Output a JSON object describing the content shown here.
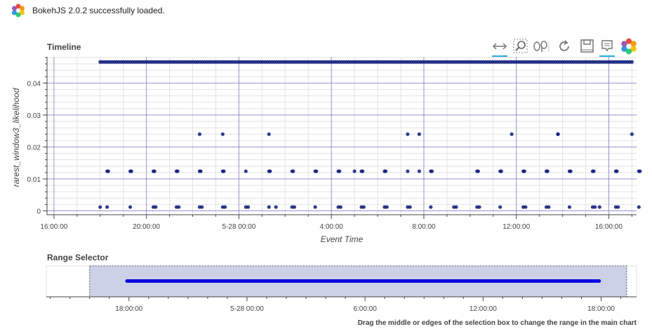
{
  "status": {
    "message": "BokehJS 2.0.2 successfully loaded."
  },
  "timeline": {
    "title": "Timeline"
  },
  "range_selector": {
    "title": "Range Selector"
  },
  "footnote": "Drag the middle or edges of the selection box to change the range in the main chart",
  "toolbar": {
    "tools": [
      {
        "icon": "x-pan-icon",
        "active": true
      },
      {
        "icon": "box-zoom-icon",
        "active": false
      },
      {
        "icon": "wheel-zoom-icon",
        "active": false
      },
      {
        "icon": "reset-icon",
        "active": false
      },
      {
        "icon": "save-icon",
        "active": false
      },
      {
        "icon": "hover-icon",
        "active": true
      },
      {
        "icon": "bokeh-logo-icon",
        "active": false
      }
    ]
  },
  "colors": {
    "points": "#0d1a7a",
    "range_line": "#0a0ade",
    "overlay": "#c8cce6",
    "grid_major": "#7b7bbf",
    "grid_minor": "#e2e2e2"
  },
  "chart_data": [
    {
      "type": "scatter",
      "title": "Timeline",
      "xlabel": "Event Time",
      "ylabel": "rarest_window3_likelihood",
      "x_unit": "hours from 2020-05-27 00:00",
      "xlim": [
        15.7,
        41.2
      ],
      "ylim": [
        -0.0012,
        0.0482
      ],
      "x_ticks": [
        {
          "value": 16,
          "label": "16:00:00"
        },
        {
          "value": 20,
          "label": "20:00:00"
        },
        {
          "value": 24,
          "label": "5-28 00:00"
        },
        {
          "value": 28,
          "label": "4:00:00"
        },
        {
          "value": 32,
          "label": "8:00:00"
        },
        {
          "value": 36,
          "label": "12:00:00"
        },
        {
          "value": 40,
          "label": "16:00:00"
        }
      ],
      "y_ticks": [
        {
          "value": 0,
          "label": "0"
        },
        {
          "value": 0.01,
          "label": "0.01"
        },
        {
          "value": 0.02,
          "label": "0.02"
        },
        {
          "value": 0.03,
          "label": "0.03"
        },
        {
          "value": 0.04,
          "label": "0.04"
        }
      ],
      "grid": true,
      "series": [
        {
          "y": 0.0466,
          "x_range": [
            18.0,
            41.0
          ],
          "count": 230
        },
        {
          "y": 0.024,
          "x": [
            22.3,
            23.3,
            25.3,
            31.3,
            31.8,
            35.8,
            37.8,
            37.8,
            41.0
          ]
        },
        {
          "y": 0.0124,
          "x": [
            18.3,
            18.35,
            19.3,
            19.35,
            20.3,
            20.35,
            21.3,
            21.35,
            22.3,
            22.35,
            23.3,
            23.35,
            24.3,
            25.3,
            25.35,
            26.3,
            26.35,
            27.3,
            27.35,
            28.3,
            28.35,
            29.0,
            29.3,
            29.35,
            30.3,
            30.35,
            31.3,
            31.8,
            32.3,
            32.35,
            34.3,
            34.35,
            35.3,
            35.35,
            36.3,
            36.35,
            37.3,
            37.35,
            38.3,
            38.35,
            39.3,
            39.35,
            40.3,
            40.35,
            41.3,
            41.35
          ]
        },
        {
          "y": 0.0012,
          "x": [
            18.0,
            18.3,
            19.3,
            20.3,
            20.4,
            21.3,
            21.4,
            22.3,
            22.4,
            23.3,
            23.4,
            24.3,
            24.4,
            25.3,
            25.6,
            26.3,
            26.4,
            27.3,
            28.3,
            28.4,
            29.3,
            29.4,
            30.3,
            30.4,
            31.3,
            31.4,
            32.3,
            33.3,
            33.4,
            34.3,
            34.4,
            35.3,
            36.3,
            36.4,
            37.3,
            37.4,
            38.3,
            39.3,
            39.4,
            39.6,
            40.3,
            40.4,
            41.3
          ]
        }
      ]
    },
    {
      "type": "line",
      "title": "Range Selector",
      "x_unit": "hours from 2020-05-27 00:00",
      "xlim": [
        13.8,
        43.8
      ],
      "selection": [
        16.0,
        43.3
      ],
      "line": {
        "x": [
          17.9,
          41.9
        ],
        "y": 0.0466
      },
      "x_ticks": [
        {
          "value": 18,
          "label": "18:00:00"
        },
        {
          "value": 24,
          "label": "5-28 00:00"
        },
        {
          "value": 30,
          "label": "6:00:00"
        },
        {
          "value": 36,
          "label": "12:00:00"
        },
        {
          "value": 42,
          "label": "18:00:00"
        }
      ]
    }
  ]
}
